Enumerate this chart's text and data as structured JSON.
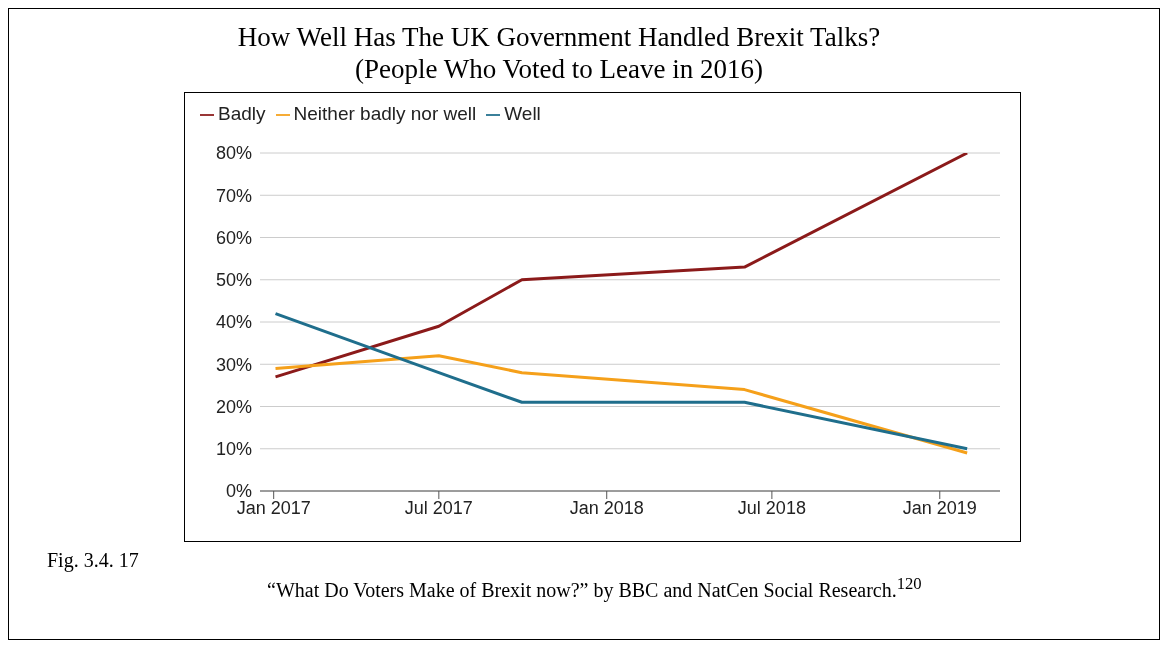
{
  "chart_data": {
    "type": "line",
    "title": "How Well Has The UK Government Handled Brexit Talks?\n(People Who Voted to Leave in 2016)",
    "x": [
      "2017-01-03",
      "2017-07-01",
      "2017-09-30",
      "2018-06-01",
      "2019-01-31"
    ],
    "series": [
      {
        "name": "Badly",
        "color": "#8b1a1a",
        "values": [
          27,
          39,
          50,
          53,
          80
        ]
      },
      {
        "name": "Neither badly nor well",
        "color": "#f5a01a",
        "values": [
          29,
          32,
          28,
          24,
          9
        ]
      },
      {
        "name": "Well",
        "color": "#1f6e8c",
        "values": [
          42,
          28,
          21,
          21,
          10
        ]
      }
    ],
    "xlim": [
      "2016-12-17",
      "2019-03-08"
    ],
    "xticks": [
      {
        "value": "2017-01-01",
        "label": "Jan 2017"
      },
      {
        "value": "2017-07-01",
        "label": "Jul 2017"
      },
      {
        "value": "2018-01-01",
        "label": "Jan 2018"
      },
      {
        "value": "2018-07-01",
        "label": "Jul 2018"
      },
      {
        "value": "2019-01-01",
        "label": "Jan 2019"
      }
    ],
    "ylim": [
      0,
      80
    ],
    "yticks": [
      {
        "value": 0,
        "label": "0%"
      },
      {
        "value": 10,
        "label": "10%"
      },
      {
        "value": 20,
        "label": "20%"
      },
      {
        "value": 30,
        "label": "30%"
      },
      {
        "value": 40,
        "label": "40%"
      },
      {
        "value": 50,
        "label": "50%"
      },
      {
        "value": 60,
        "label": "60%"
      },
      {
        "value": 70,
        "label": "70%"
      },
      {
        "value": 80,
        "label": "80%"
      }
    ],
    "grid": "y",
    "legend": "top left",
    "marker": "none",
    "line_style": "solid",
    "annotations": [
      "Fig. 3.4.  17",
      "“What Do Voters Make of Brexit now?”  by BBC and NatCen Social Research.$^{120}$"
    ]
  }
}
